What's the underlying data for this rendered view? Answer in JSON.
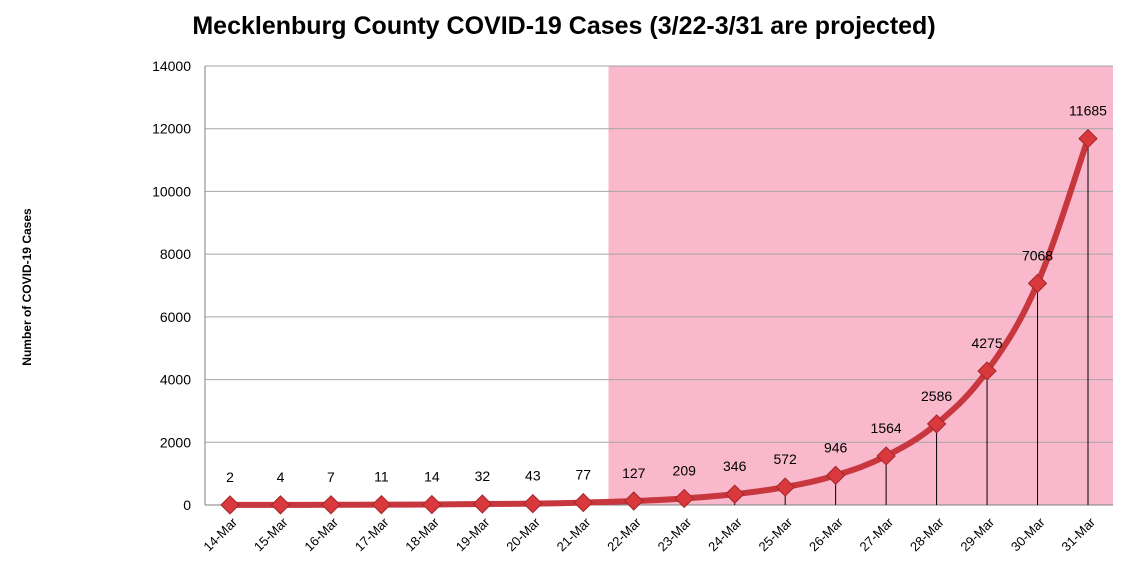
{
  "chart_data": {
    "type": "line",
    "title": "Mecklenburg County COVID-19 Cases (3/22-3/31 are projected)",
    "ylabel": "Number of COVID-19 Cases",
    "xlabel": "",
    "categories": [
      "14-Mar",
      "15-Mar",
      "16-Mar",
      "17-Mar",
      "18-Mar",
      "19-Mar",
      "20-Mar",
      "21-Mar",
      "22-Mar",
      "23-Mar",
      "24-Mar",
      "25-Mar",
      "26-Mar",
      "27-Mar",
      "28-Mar",
      "29-Mar",
      "30-Mar",
      "31-Mar"
    ],
    "series": [
      {
        "values": [
          2,
          4,
          7,
          11,
          14,
          32,
          43,
          77,
          127,
          209,
          346,
          572,
          946,
          1564,
          2586,
          4275,
          7068,
          11685
        ]
      }
    ],
    "ylim": [
      0,
      14000
    ],
    "yticks": [
      0,
      2000,
      4000,
      6000,
      8000,
      10000,
      12000,
      14000
    ],
    "grid": true,
    "projected_range": [
      "22-Mar",
      "31-Mar"
    ],
    "colors": {
      "line": "#c8363e",
      "marker": "#d9383d",
      "projected_band": "#f9b8cb",
      "grid": "#a6a6a6"
    }
  }
}
